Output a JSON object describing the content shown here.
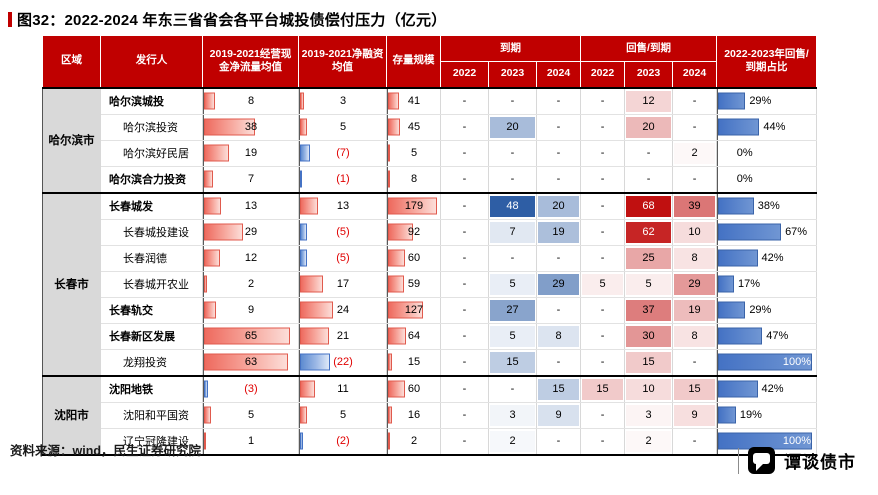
{
  "source": "资料来源：wind，民生证券研究院",
  "brand": "谭谈债市",
  "colors": {
    "header_bg": "#C00000",
    "accent_red": "#C00000",
    "region_bg": "#D9D9D9",
    "negative_text": "#E00000",
    "heat_blue_max": "#2E5EA5",
    "heat_red_max": "#C01010",
    "bar_red": "#EE6A5E",
    "bar_blue": "#4472C4",
    "ratio_bar": "#4472C4"
  },
  "table": {
    "headers": {
      "region": "区域",
      "issuer": "发行人",
      "cashflow": "2019-2021经营现金净流量均值",
      "financing": "2019-2021净融资均值",
      "stock": "存量规模",
      "maturity": "到期",
      "put": "回售/到期",
      "ratio": "2022-2023年回售/到期占比",
      "years": [
        "2022",
        "2023",
        "2024"
      ]
    }
  },
  "chart_data": {
    "type": "table",
    "title": "图32：2022-2024 年东三省省会各平台城投债偿付压力（亿元）",
    "unit": "亿元",
    "bar_maxima": {
      "cashflow": 65,
      "financing": 24,
      "stock": 179,
      "ratio_pct": 100
    },
    "heat_maxima": {
      "maturity": 48,
      "put": 68
    },
    "regions": [
      {
        "name": "哈尔滨市",
        "rows": [
          {
            "issuer": "哈尔滨城投",
            "bold": true,
            "indent": 0,
            "cashflow": 8,
            "financing": 3,
            "stock": 41,
            "maturity": [
              null,
              null,
              null
            ],
            "put": [
              null,
              12,
              null
            ],
            "ratio_pct": 29
          },
          {
            "issuer": "哈尔滨投资",
            "bold": false,
            "indent": 1,
            "cashflow": 38,
            "financing": 5,
            "stock": 45,
            "maturity": [
              null,
              20,
              null
            ],
            "put": [
              null,
              20,
              null
            ],
            "ratio_pct": 44
          },
          {
            "issuer": "哈尔滨好民居",
            "bold": false,
            "indent": 1,
            "cashflow": 19,
            "financing": -7,
            "stock": 5,
            "maturity": [
              null,
              null,
              null
            ],
            "put": [
              null,
              null,
              2
            ],
            "ratio_pct": 0
          },
          {
            "issuer": "哈尔滨合力投资",
            "bold": true,
            "indent": 0,
            "cashflow": 7,
            "financing": -1,
            "stock": 8,
            "maturity": [
              null,
              null,
              null
            ],
            "put": [
              null,
              null,
              null
            ],
            "ratio_pct": 0
          }
        ]
      },
      {
        "name": "长春市",
        "rows": [
          {
            "issuer": "长春城发",
            "bold": true,
            "indent": 0,
            "cashflow": 13,
            "financing": 13,
            "stock": 179,
            "maturity": [
              null,
              48,
              20
            ],
            "put": [
              null,
              68,
              39
            ],
            "ratio_pct": 38
          },
          {
            "issuer": "长春城投建设",
            "bold": false,
            "indent": 1,
            "cashflow": 29,
            "financing": -5,
            "stock": 92,
            "maturity": [
              null,
              7,
              19
            ],
            "put": [
              null,
              62,
              10
            ],
            "ratio_pct": 67
          },
          {
            "issuer": "长春润德",
            "bold": false,
            "indent": 1,
            "cashflow": 12,
            "financing": -5,
            "stock": 60,
            "maturity": [
              null,
              null,
              null
            ],
            "put": [
              null,
              25,
              8
            ],
            "ratio_pct": 42
          },
          {
            "issuer": "长春城开农业",
            "bold": false,
            "indent": 1,
            "cashflow": 2,
            "financing": 17,
            "stock": 59,
            "maturity": [
              null,
              5,
              29
            ],
            "put": [
              5,
              5,
              29
            ],
            "ratio_pct": 17
          },
          {
            "issuer": "长春轨交",
            "bold": true,
            "indent": 0,
            "cashflow": 9,
            "financing": 24,
            "stock": 127,
            "maturity": [
              null,
              27,
              null
            ],
            "put": [
              null,
              37,
              19
            ],
            "ratio_pct": 29
          },
          {
            "issuer": "长春新区发展",
            "bold": true,
            "indent": 0,
            "cashflow": 65,
            "financing": 21,
            "stock": 64,
            "maturity": [
              null,
              5,
              8
            ],
            "put": [
              null,
              30,
              8
            ],
            "ratio_pct": 47
          },
          {
            "issuer": "龙翔投资",
            "bold": false,
            "indent": 1,
            "cashflow": 63,
            "financing": -22,
            "stock": 15,
            "maturity": [
              null,
              15,
              null
            ],
            "put": [
              null,
              15,
              null
            ],
            "ratio_pct": 100
          }
        ]
      },
      {
        "name": "沈阳市",
        "rows": [
          {
            "issuer": "沈阳地铁",
            "bold": true,
            "indent": 0,
            "cashflow": -3,
            "financing": 11,
            "stock": 60,
            "maturity": [
              null,
              null,
              15
            ],
            "put": [
              15,
              10,
              15
            ],
            "ratio_pct": 42
          },
          {
            "issuer": "沈阳和平国资",
            "bold": false,
            "indent": 1,
            "cashflow": 5,
            "financing": 5,
            "stock": 16,
            "maturity": [
              null,
              3,
              9
            ],
            "put": [
              null,
              3,
              9
            ],
            "ratio_pct": 19
          },
          {
            "issuer": "辽宁冠隆建设",
            "bold": false,
            "indent": 1,
            "cashflow": 1,
            "financing": -2,
            "stock": 2,
            "maturity": [
              null,
              2,
              null
            ],
            "put": [
              null,
              2,
              null
            ],
            "ratio_pct": 100
          }
        ]
      }
    ]
  }
}
